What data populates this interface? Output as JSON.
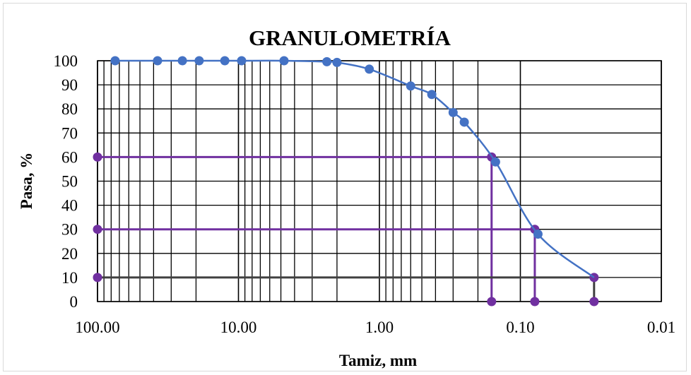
{
  "chart_data": {
    "type": "scatter",
    "title": "GRANULOMETRÍA",
    "xlabel": "Tamiz, mm",
    "ylabel": "Pasa, %",
    "x_scale": "log",
    "x_reversed": true,
    "xlim": [
      100,
      0.01
    ],
    "ylim": [
      0,
      100
    ],
    "x_ticks": [
      100,
      10,
      1,
      0.1,
      0.01
    ],
    "x_tick_labels": [
      "100.00",
      "10.00",
      "1.00",
      "0.10",
      "0.01"
    ],
    "y_ticks": [
      0,
      10,
      20,
      30,
      40,
      50,
      60,
      70,
      80,
      90,
      100
    ],
    "y_tick_labels": [
      "0",
      "10",
      "20",
      "30",
      "40",
      "50",
      "60",
      "70",
      "80",
      "90",
      "100"
    ],
    "grid": true,
    "series": [
      {
        "color": "#4472c4",
        "x": [
          75,
          37.5,
          25,
          19,
          12.5,
          9.5,
          4.75,
          2.36,
          2.0,
          1.18,
          0.6,
          0.425,
          0.3,
          0.25,
          0.15,
          0.075
        ],
        "y": [
          100,
          100,
          100,
          100,
          100,
          100,
          100,
          99.6,
          99.3,
          96.5,
          89.5,
          86,
          78.5,
          74.5,
          58,
          28
        ]
      }
    ],
    "reference_lines": [
      {
        "color": "#7030a0",
        "x": 0.16,
        "y": 60,
        "x_start": 100
      },
      {
        "color": "#7030a0",
        "x": 0.079,
        "y": 30,
        "x_start": 100
      },
      {
        "color": "#404040",
        "x": 0.03,
        "y": 10,
        "x_start": 100
      }
    ],
    "colors": {
      "curve": "#4472c4",
      "reference": "#7030a0",
      "d10_line": "#404040",
      "grid": "#000000"
    }
  }
}
